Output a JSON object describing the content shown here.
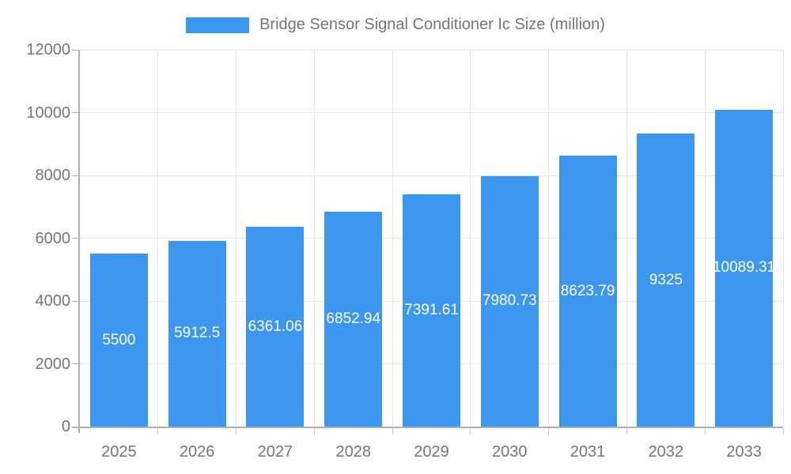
{
  "legend": {
    "label": "Bridge Sensor Signal Conditioner Ic Size (million)",
    "swatch_icon": "legend-swatch"
  },
  "colors": {
    "bar": "#3D97EE",
    "axis": "#B0B0B0",
    "grid": "#E4E4E4",
    "boundary_tick": "#C9C9C9",
    "text": "#757575",
    "bar_label": "#FFFFFF",
    "background": "#FFFFFF"
  },
  "chart_data": {
    "type": "bar",
    "title": "Bridge Sensor Signal Conditioner Ic Size (million)",
    "categories": [
      "2025",
      "2026",
      "2027",
      "2028",
      "2029",
      "2030",
      "2031",
      "2032",
      "2033"
    ],
    "values": [
      5500,
      5912.5,
      6361.06,
      6852.94,
      7391.61,
      7980.73,
      8623.79,
      9325,
      10089.31
    ],
    "value_labels": [
      "5500",
      "5912.5",
      "6361.06",
      "6852.94",
      "7391.61",
      "7980.73",
      "8623.79",
      "9325",
      "10089.31"
    ],
    "xlabel": "",
    "ylabel": "",
    "ylim": [
      0,
      12000
    ],
    "yticks": [
      0,
      2000,
      4000,
      6000,
      8000,
      10000,
      12000
    ],
    "ytick_labels": [
      "0",
      "2000",
      "4000",
      "6000",
      "8000",
      "10000",
      "12000"
    ],
    "grid": true,
    "grid_vertical": true,
    "legend_position": "top-center",
    "bar_label_position": "center-of-bar",
    "series": [
      {
        "name": "Bridge Sensor Signal Conditioner Ic Size (million)",
        "values": [
          5500,
          5912.5,
          6361.06,
          6852.94,
          7391.61,
          7980.73,
          8623.79,
          9325,
          10089.31
        ]
      }
    ]
  }
}
